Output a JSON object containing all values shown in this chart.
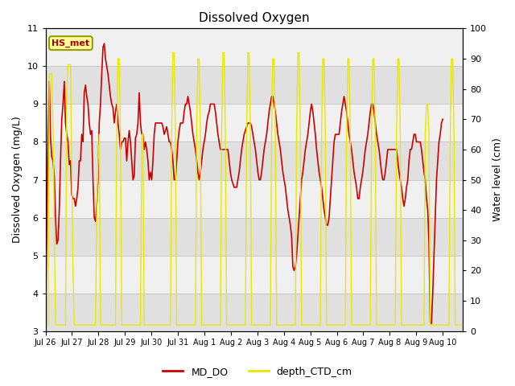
{
  "title": "Dissolved Oxygen",
  "ylabel_left": "Dissolved Oxygen (mg/L)",
  "ylabel_right": "Water level (cm)",
  "ylim_left": [
    3.0,
    11.0
  ],
  "ylim_right": [
    0,
    100
  ],
  "yticks_left": [
    3.0,
    4.0,
    5.0,
    6.0,
    7.0,
    8.0,
    9.0,
    10.0,
    11.0
  ],
  "yticks_right": [
    0,
    10,
    20,
    30,
    40,
    50,
    60,
    70,
    80,
    90,
    100
  ],
  "color_do": "#cc0000",
  "color_depth": "#e8e800",
  "annotation_text": "HS_met",
  "annotation_bg": "#ffff99",
  "annotation_border": "#999900",
  "band_color_dark": "#dcdcdc",
  "band_color_light": "#ebebeb",
  "legend_do": "MD_DO",
  "legend_depth": "depth_CTD_cm",
  "xtick_labels": [
    "Jul 26",
    "Jul 27",
    "Jul 28",
    "Jul 29",
    "Jul 30",
    "Jul 31",
    "Aug 1",
    "Aug 2",
    "Aug 3",
    "Aug 4",
    "Aug 5",
    "Aug 6",
    "Aug 7",
    "Aug 8",
    "Aug 9",
    "Aug 10"
  ],
  "md_do": [
    3.2,
    5.9,
    8.2,
    9.6,
    8.1,
    7.6,
    7.5,
    7.1,
    6.0,
    5.3,
    5.4,
    6.2,
    7.5,
    8.6,
    9.0,
    9.6,
    8.5,
    8.2,
    8.0,
    7.4,
    7.5,
    6.6,
    6.5,
    6.5,
    6.3,
    6.5,
    6.8,
    7.5,
    7.5,
    8.2,
    8.0,
    9.3,
    9.5,
    9.2,
    9.0,
    8.5,
    8.2,
    8.3,
    7.0,
    6.0,
    5.9,
    6.3,
    7.0,
    8.5,
    9.0,
    9.8,
    10.5,
    10.6,
    10.2,
    10.0,
    9.8,
    9.5,
    9.2,
    9.0,
    8.9,
    8.5,
    8.8,
    9.0,
    8.5,
    8.2,
    7.8,
    8.0,
    8.0,
    8.1,
    8.1,
    7.5,
    8.0,
    8.3,
    8.0,
    7.5,
    7.0,
    7.1,
    8.1,
    8.2,
    8.5,
    9.3,
    8.5,
    8.2,
    8.2,
    7.8,
    8.0,
    7.8,
    7.5,
    7.0,
    7.2,
    7.0,
    7.5,
    8.2,
    8.5,
    8.5,
    8.5,
    8.5,
    8.5,
    8.5,
    8.4,
    8.2,
    8.3,
    8.4,
    8.2,
    8.0,
    8.0,
    7.8,
    7.5,
    7.0,
    7.0,
    7.5,
    8.0,
    8.3,
    8.5,
    8.5,
    8.5,
    8.8,
    9.0,
    9.0,
    9.2,
    9.0,
    8.8,
    8.5,
    8.2,
    8.0,
    7.8,
    7.5,
    7.2,
    7.0,
    7.2,
    7.5,
    7.8,
    8.0,
    8.2,
    8.5,
    8.7,
    8.8,
    9.0,
    9.0,
    9.0,
    9.0,
    8.8,
    8.5,
    8.2,
    8.0,
    7.8,
    7.8,
    7.8,
    7.8,
    7.8,
    7.8,
    7.8,
    7.5,
    7.2,
    7.0,
    6.9,
    6.8,
    6.8,
    6.8,
    7.0,
    7.2,
    7.5,
    7.8,
    8.0,
    8.2,
    8.3,
    8.4,
    8.5,
    8.5,
    8.5,
    8.4,
    8.2,
    8.0,
    7.8,
    7.5,
    7.2,
    7.0,
    7.0,
    7.2,
    7.5,
    7.8,
    8.0,
    8.2,
    8.5,
    8.8,
    9.0,
    9.2,
    9.2,
    9.0,
    8.8,
    8.5,
    8.2,
    8.0,
    7.8,
    7.5,
    7.2,
    7.0,
    6.8,
    6.5,
    6.2,
    6.0,
    5.8,
    5.5,
    4.7,
    4.6,
    4.7,
    5.0,
    5.5,
    6.0,
    6.5,
    7.0,
    7.2,
    7.5,
    7.8,
    8.0,
    8.2,
    8.5,
    8.8,
    9.0,
    8.8,
    8.5,
    8.2,
    7.8,
    7.5,
    7.2,
    7.0,
    6.8,
    6.5,
    6.2,
    6.0,
    5.8,
    5.8,
    6.0,
    6.5,
    7.0,
    7.5,
    8.0,
    8.2,
    8.2,
    8.2,
    8.2,
    8.5,
    8.8,
    9.0,
    9.2,
    9.0,
    8.8,
    8.5,
    8.2,
    8.0,
    7.8,
    7.5,
    7.2,
    7.0,
    6.8,
    6.5,
    6.5,
    6.8,
    7.0,
    7.2,
    7.5,
    7.8,
    8.0,
    8.2,
    8.5,
    8.8,
    9.0,
    9.0,
    8.8,
    8.5,
    8.2,
    8.0,
    7.8,
    7.5,
    7.2,
    7.0,
    7.0,
    7.2,
    7.5,
    7.8,
    7.8,
    7.8,
    7.8,
    7.8,
    7.8,
    7.8,
    7.8,
    7.5,
    7.2,
    7.0,
    6.8,
    6.5,
    6.3,
    6.5,
    6.8,
    7.0,
    7.5,
    7.8,
    7.8,
    8.0,
    8.2,
    8.2,
    8.0,
    8.0,
    8.0,
    8.0,
    7.8,
    7.5,
    7.2,
    7.0,
    6.5,
    6.2,
    5.3,
    3.2,
    3.2,
    4.0,
    5.0,
    6.0,
    7.0,
    7.5,
    8.0,
    8.2,
    8.5,
    8.6
  ],
  "depth_ctd": [
    2,
    2,
    2,
    85,
    85,
    85,
    68,
    35,
    2,
    2,
    2,
    2,
    2,
    2,
    2,
    2,
    2,
    80,
    88,
    88,
    88,
    55,
    20,
    2,
    2,
    2,
    2,
    2,
    2,
    2,
    2,
    2,
    2,
    2,
    2,
    2,
    2,
    2,
    2,
    2,
    2,
    40,
    55,
    65,
    2,
    2,
    2,
    2,
    2,
    2,
    2,
    2,
    2,
    2,
    2,
    2,
    2,
    65,
    90,
    90,
    65,
    2,
    2,
    2,
    2,
    2,
    2,
    2,
    2,
    2,
    2,
    2,
    2,
    2,
    2,
    2,
    2,
    65,
    65,
    2,
    2,
    2,
    2,
    2,
    2,
    2,
    2,
    2,
    2,
    2,
    2,
    2,
    2,
    2,
    2,
    2,
    2,
    2,
    2,
    2,
    2,
    65,
    92,
    92,
    65,
    2,
    2,
    2,
    2,
    2,
    2,
    2,
    2,
    2,
    2,
    2,
    2,
    2,
    2,
    2,
    2,
    65,
    90,
    90,
    65,
    2,
    2,
    2,
    2,
    2,
    2,
    2,
    2,
    2,
    2,
    2,
    2,
    2,
    2,
    2,
    2,
    65,
    92,
    92,
    65,
    2,
    2,
    2,
    2,
    2,
    2,
    2,
    2,
    2,
    2,
    2,
    2,
    2,
    2,
    2,
    2,
    65,
    92,
    92,
    65,
    2,
    2,
    2,
    2,
    2,
    2,
    2,
    2,
    2,
    2,
    2,
    2,
    2,
    2,
    2,
    2,
    65,
    90,
    90,
    65,
    2,
    2,
    2,
    2,
    2,
    2,
    2,
    2,
    2,
    2,
    2,
    2,
    2,
    2,
    2,
    2,
    65,
    92,
    92,
    65,
    2,
    2,
    2,
    2,
    2,
    2,
    2,
    2,
    2,
    2,
    2,
    2,
    2,
    2,
    2,
    2,
    65,
    90,
    90,
    65,
    2,
    2,
    2,
    2,
    2,
    2,
    2,
    2,
    2,
    2,
    2,
    2,
    2,
    2,
    2,
    2,
    65,
    90,
    90,
    65,
    2,
    2,
    2,
    2,
    2,
    2,
    2,
    2,
    2,
    2,
    2,
    2,
    2,
    2,
    2,
    2,
    65,
    90,
    90,
    65,
    2,
    2,
    2,
    2,
    2,
    2,
    2,
    2,
    2,
    2,
    2,
    2,
    2,
    2,
    2,
    2,
    65,
    90,
    90,
    65,
    2,
    2,
    2,
    2,
    2,
    2,
    2,
    2,
    2,
    2,
    2,
    2,
    2,
    2,
    2,
    2,
    2,
    2,
    2,
    65,
    75,
    75,
    65,
    2,
    2,
    2,
    2,
    2,
    2,
    2,
    2,
    2,
    2,
    2,
    2,
    2,
    2,
    2,
    2,
    65,
    90,
    90,
    65,
    2,
    2,
    2,
    2,
    2,
    2,
    2
  ]
}
